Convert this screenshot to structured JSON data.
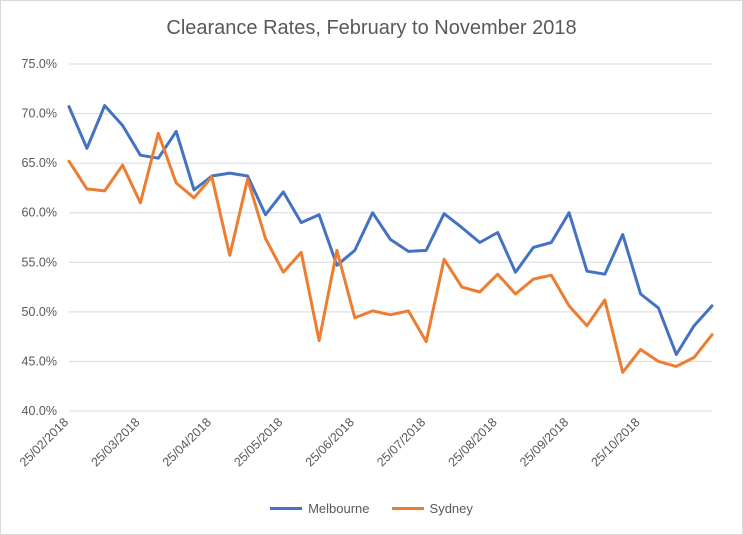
{
  "chart_data": {
    "type": "line",
    "title": "Clearance Rates, February to November 2018",
    "xlabel": "",
    "ylabel": "",
    "ylim": [
      40.0,
      75.0
    ],
    "yticks": [
      "75.0%",
      "70.0%",
      "65.0%",
      "60.0%",
      "55.0%",
      "50.0%",
      "45.0%",
      "40.0%"
    ],
    "ytick_values": [
      75,
      70,
      65,
      60,
      55,
      50,
      45,
      40
    ],
    "xtick_labels": [
      "25/02/2018",
      "25/03/2018",
      "25/04/2018",
      "25/05/2018",
      "25/06/2018",
      "25/07/2018",
      "25/08/2018",
      "25/09/2018",
      "25/10/2018"
    ],
    "xtick_indices": [
      0,
      4,
      8,
      12,
      16,
      20,
      24,
      28,
      32
    ],
    "grid": true,
    "legend_position": "bottom",
    "series": [
      {
        "name": "Melbourne",
        "color": "#4472c4",
        "values": [
          70.7,
          66.5,
          70.8,
          68.8,
          65.8,
          65.5,
          68.2,
          62.3,
          63.7,
          64.0,
          63.7,
          59.8,
          62.1,
          59.0,
          59.8,
          54.7,
          56.2,
          60.0,
          57.3,
          56.1,
          56.2,
          59.9,
          58.5,
          57.0,
          58.0,
          54.0,
          56.5,
          57.0,
          60.0,
          54.1,
          53.8,
          57.8,
          51.8,
          50.4,
          45.7,
          48.6,
          50.6
        ]
      },
      {
        "name": "Sydney",
        "color": "#ed7d31",
        "values": [
          65.2,
          62.4,
          62.2,
          64.8,
          61.0,
          68.0,
          63.0,
          61.5,
          63.6,
          55.7,
          63.4,
          57.4,
          54.0,
          56.0,
          47.1,
          56.2,
          49.4,
          50.1,
          49.7,
          50.1,
          47.0,
          55.3,
          52.5,
          52.0,
          53.8,
          51.8,
          53.3,
          53.7,
          50.6,
          48.6,
          51.2,
          43.9,
          46.2,
          45.0,
          44.5,
          45.4,
          47.7
        ]
      }
    ]
  }
}
